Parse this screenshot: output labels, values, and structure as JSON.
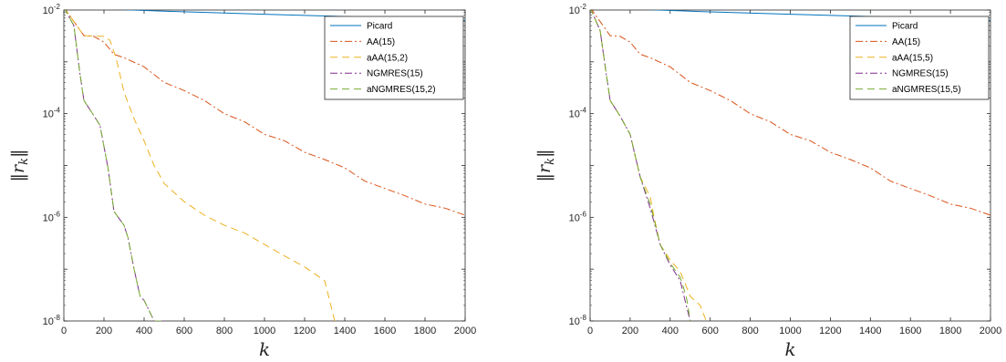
{
  "chart_data": [
    {
      "type": "line",
      "xlabel": "k",
      "ylabel": "||r_k||",
      "xlim": [
        0,
        2000
      ],
      "ylim": [
        1e-08,
        0.01
      ],
      "yscale": "log",
      "grid": false,
      "legend_position": "top-right",
      "x_ticks": [
        "0",
        "200",
        "400",
        "600",
        "800",
        "1000",
        "1200",
        "1400",
        "1600",
        "1800",
        "2000"
      ],
      "y_ticks": [
        {
          "base": "10",
          "exp": "-2"
        },
        {
          "base": "10",
          "exp": "-4"
        },
        {
          "base": "10",
          "exp": "-6"
        },
        {
          "base": "10",
          "exp": "-8"
        }
      ],
      "series": [
        {
          "name": "Picard",
          "color": "#0072BD",
          "dash": "solid",
          "points": [
            [
              0,
              0.0112
            ],
            [
              500,
              0.0095
            ],
            [
              1000,
              0.0083
            ],
            [
              1500,
              0.0073
            ],
            [
              2000,
              0.0063
            ]
          ]
        },
        {
          "name": "AA(15)",
          "color": "#D95319",
          "dash": "dashdot",
          "points": [
            [
              0,
              0.0112
            ],
            [
              50,
              0.006
            ],
            [
              100,
              0.0032
            ],
            [
              150,
              0.0031
            ],
            [
              200,
              0.0024
            ],
            [
              250,
              0.0014
            ],
            [
              300,
              0.0012
            ],
            [
              400,
              0.0008
            ],
            [
              500,
              0.0004
            ],
            [
              600,
              0.00028
            ],
            [
              700,
              0.00018
            ],
            [
              800,
              0.0001
            ],
            [
              900,
              7e-05
            ],
            [
              1000,
              4e-05
            ],
            [
              1100,
              3e-05
            ],
            [
              1200,
              1.8e-05
            ],
            [
              1300,
              1.3e-05
            ],
            [
              1400,
              9e-06
            ],
            [
              1500,
              5e-06
            ],
            [
              1600,
              3.6e-06
            ],
            [
              1700,
              2.6e-06
            ],
            [
              1800,
              1.8e-06
            ],
            [
              1900,
              1.5e-06
            ],
            [
              2000,
              1.1e-06
            ]
          ]
        },
        {
          "name": "aAA(15,2)",
          "color": "#EDB120",
          "dash": "dashed",
          "points": [
            [
              0,
              0.0112
            ],
            [
              50,
              0.006
            ],
            [
              100,
              0.0032
            ],
            [
              200,
              0.0031
            ],
            [
              230,
              0.0026
            ],
            [
              260,
              0.0012
            ],
            [
              300,
              0.00026
            ],
            [
              350,
              8e-05
            ],
            [
              400,
              3e-05
            ],
            [
              450,
              1e-05
            ],
            [
              500,
              4.5e-06
            ],
            [
              550,
              3e-06
            ],
            [
              600,
              2e-06
            ],
            [
              700,
              1.1e-06
            ],
            [
              800,
              7e-07
            ],
            [
              900,
              5e-07
            ],
            [
              1000,
              3e-07
            ],
            [
              1100,
              1.8e-07
            ],
            [
              1200,
              1.1e-07
            ],
            [
              1300,
              6e-08
            ],
            [
              1350,
              1e-08
            ]
          ]
        },
        {
          "name": "NGMRES(15)",
          "color": "#7E2F8E",
          "dash": "dashdot",
          "points": [
            [
              0,
              0.0112
            ],
            [
              50,
              0.005
            ],
            [
              80,
              0.0006
            ],
            [
              100,
              0.00018
            ],
            [
              130,
              0.00012
            ],
            [
              180,
              6e-05
            ],
            [
              220,
              9e-06
            ],
            [
              250,
              1.3e-06
            ],
            [
              300,
              7e-07
            ],
            [
              320,
              4e-07
            ],
            [
              350,
              1e-07
            ],
            [
              380,
              3e-08
            ],
            [
              400,
              2.5e-08
            ],
            [
              450,
              1e-08
            ],
            [
              500,
              1e-08
            ]
          ]
        },
        {
          "name": "aNGMRES(15,2)",
          "color": "#77AC30",
          "dash": "dashed",
          "points": [
            [
              0,
              0.0112
            ],
            [
              50,
              0.005
            ],
            [
              80,
              0.0006
            ],
            [
              100,
              0.00018
            ],
            [
              130,
              0.00012
            ],
            [
              180,
              6e-05
            ],
            [
              220,
              9e-06
            ],
            [
              250,
              1.3e-06
            ],
            [
              300,
              7e-07
            ],
            [
              320,
              4e-07
            ],
            [
              350,
              1e-07
            ],
            [
              380,
              3e-08
            ],
            [
              400,
              2.5e-08
            ],
            [
              450,
              1e-08
            ],
            [
              500,
              1e-08
            ]
          ]
        }
      ]
    },
    {
      "type": "line",
      "xlabel": "k",
      "ylabel": "||r_k||",
      "xlim": [
        0,
        2000
      ],
      "ylim": [
        1e-08,
        0.01
      ],
      "yscale": "log",
      "grid": false,
      "legend_position": "top-right",
      "x_ticks": [
        "0",
        "200",
        "400",
        "600",
        "800",
        "1000",
        "1200",
        "1400",
        "1600",
        "1800",
        "2000"
      ],
      "y_ticks": [
        {
          "base": "10",
          "exp": "-2"
        },
        {
          "base": "10",
          "exp": "-4"
        },
        {
          "base": "10",
          "exp": "-6"
        },
        {
          "base": "10",
          "exp": "-8"
        }
      ],
      "series": [
        {
          "name": "Picard",
          "color": "#0072BD",
          "dash": "solid",
          "points": [
            [
              0,
              0.0112
            ],
            [
              500,
              0.0095
            ],
            [
              1000,
              0.0083
            ],
            [
              1500,
              0.0073
            ],
            [
              2000,
              0.0063
            ]
          ]
        },
        {
          "name": "AA(15)",
          "color": "#D95319",
          "dash": "dashdot",
          "points": [
            [
              0,
              0.0112
            ],
            [
              50,
              0.006
            ],
            [
              100,
              0.0032
            ],
            [
              150,
              0.0031
            ],
            [
              200,
              0.0024
            ],
            [
              250,
              0.0014
            ],
            [
              300,
              0.0012
            ],
            [
              400,
              0.0008
            ],
            [
              500,
              0.0004
            ],
            [
              600,
              0.00028
            ],
            [
              700,
              0.00018
            ],
            [
              800,
              0.0001
            ],
            [
              900,
              7e-05
            ],
            [
              1000,
              4e-05
            ],
            [
              1100,
              3e-05
            ],
            [
              1200,
              1.8e-05
            ],
            [
              1300,
              1.3e-05
            ],
            [
              1400,
              9e-06
            ],
            [
              1500,
              5e-06
            ],
            [
              1600,
              3.6e-06
            ],
            [
              1700,
              2.6e-06
            ],
            [
              1800,
              1.8e-06
            ],
            [
              1900,
              1.5e-06
            ],
            [
              2000,
              1.1e-06
            ]
          ]
        },
        {
          "name": "aAA(15,5)",
          "color": "#EDB120",
          "dash": "dashed",
          "points": [
            [
              0,
              0.0112
            ],
            [
              50,
              0.004
            ],
            [
              80,
              0.0006
            ],
            [
              100,
              0.00018
            ],
            [
              150,
              9e-05
            ],
            [
              200,
              4e-05
            ],
            [
              250,
              6e-06
            ],
            [
              300,
              2.5e-06
            ],
            [
              320,
              1e-06
            ],
            [
              350,
              3e-07
            ],
            [
              400,
              1.5e-07
            ],
            [
              450,
              9e-08
            ],
            [
              500,
              3e-08
            ],
            [
              550,
              2e-08
            ],
            [
              580,
              1e-08
            ]
          ]
        },
        {
          "name": "NGMRES(15)",
          "color": "#7E2F8E",
          "dash": "dashdot",
          "points": [
            [
              0,
              0.0112
            ],
            [
              50,
              0.004
            ],
            [
              80,
              0.0006
            ],
            [
              100,
              0.00018
            ],
            [
              150,
              9e-05
            ],
            [
              200,
              4e-05
            ],
            [
              250,
              6e-06
            ],
            [
              300,
              1.5e-06
            ],
            [
              320,
              8e-07
            ],
            [
              350,
              3e-07
            ],
            [
              400,
              1.2e-07
            ],
            [
              450,
              6e-08
            ],
            [
              480,
              2e-08
            ],
            [
              500,
              1e-08
            ]
          ]
        },
        {
          "name": "aNGMRES(15,5)",
          "color": "#77AC30",
          "dash": "dashed",
          "points": [
            [
              0,
              0.0112
            ],
            [
              50,
              0.004
            ],
            [
              80,
              0.0006
            ],
            [
              100,
              0.00018
            ],
            [
              150,
              9e-05
            ],
            [
              200,
              4e-05
            ],
            [
              250,
              6e-06
            ],
            [
              300,
              1.8e-06
            ],
            [
              320,
              9e-07
            ],
            [
              350,
              3e-07
            ],
            [
              400,
              1.3e-07
            ],
            [
              450,
              7e-08
            ],
            [
              480,
              3e-08
            ],
            [
              500,
              1e-08
            ]
          ]
        }
      ]
    }
  ]
}
